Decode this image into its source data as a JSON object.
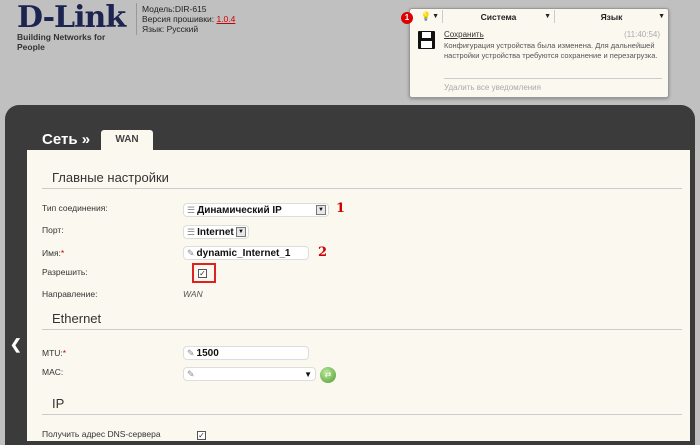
{
  "header": {
    "logo": "D-Link",
    "tagline": "Building Networks for People",
    "model": "Модель:DIR-615",
    "firmware_label": "Версия прошивки:",
    "firmware_version": "1.0.4",
    "language": "Язык: Русский"
  },
  "notifications": {
    "count": "1",
    "menu_system": "Система",
    "menu_language": "Язык",
    "title": "Сохранить",
    "time": "(11:40:54)",
    "message": "Конфигурация устройства была изменена. Для дальнейшей настройки устройства требуются сохранение и перезагрузка.",
    "clear_all": "Удалить все уведомления"
  },
  "nav": {
    "breadcrumb": "Сеть »",
    "tab": "WAN"
  },
  "main": {
    "section_title": "Главные настройки",
    "connection_type_label": "Тип соединения:",
    "connection_type": "Динамический IP",
    "port_label": "Порт:",
    "port": "Internet",
    "name_label": "Имя:",
    "name": "dynamic_Internet_1",
    "enable_label": "Разрешить:",
    "enable": true,
    "direction_label": "Направление:",
    "direction": "WAN",
    "annotation_1": "1",
    "annotation_2": "2"
  },
  "ethernet": {
    "section_title": "Ethernet",
    "mtu_label": "MTU:",
    "mtu": "1500",
    "mac_label": "MAC:",
    "mac": ""
  },
  "ip": {
    "section_title": "IP",
    "dns_label": "Получить адрес DNS-сервера",
    "dns": true
  },
  "colors": {
    "accent_red": "#cc0000",
    "panel": "#3b3b3b",
    "content": "#fbf8ef"
  }
}
